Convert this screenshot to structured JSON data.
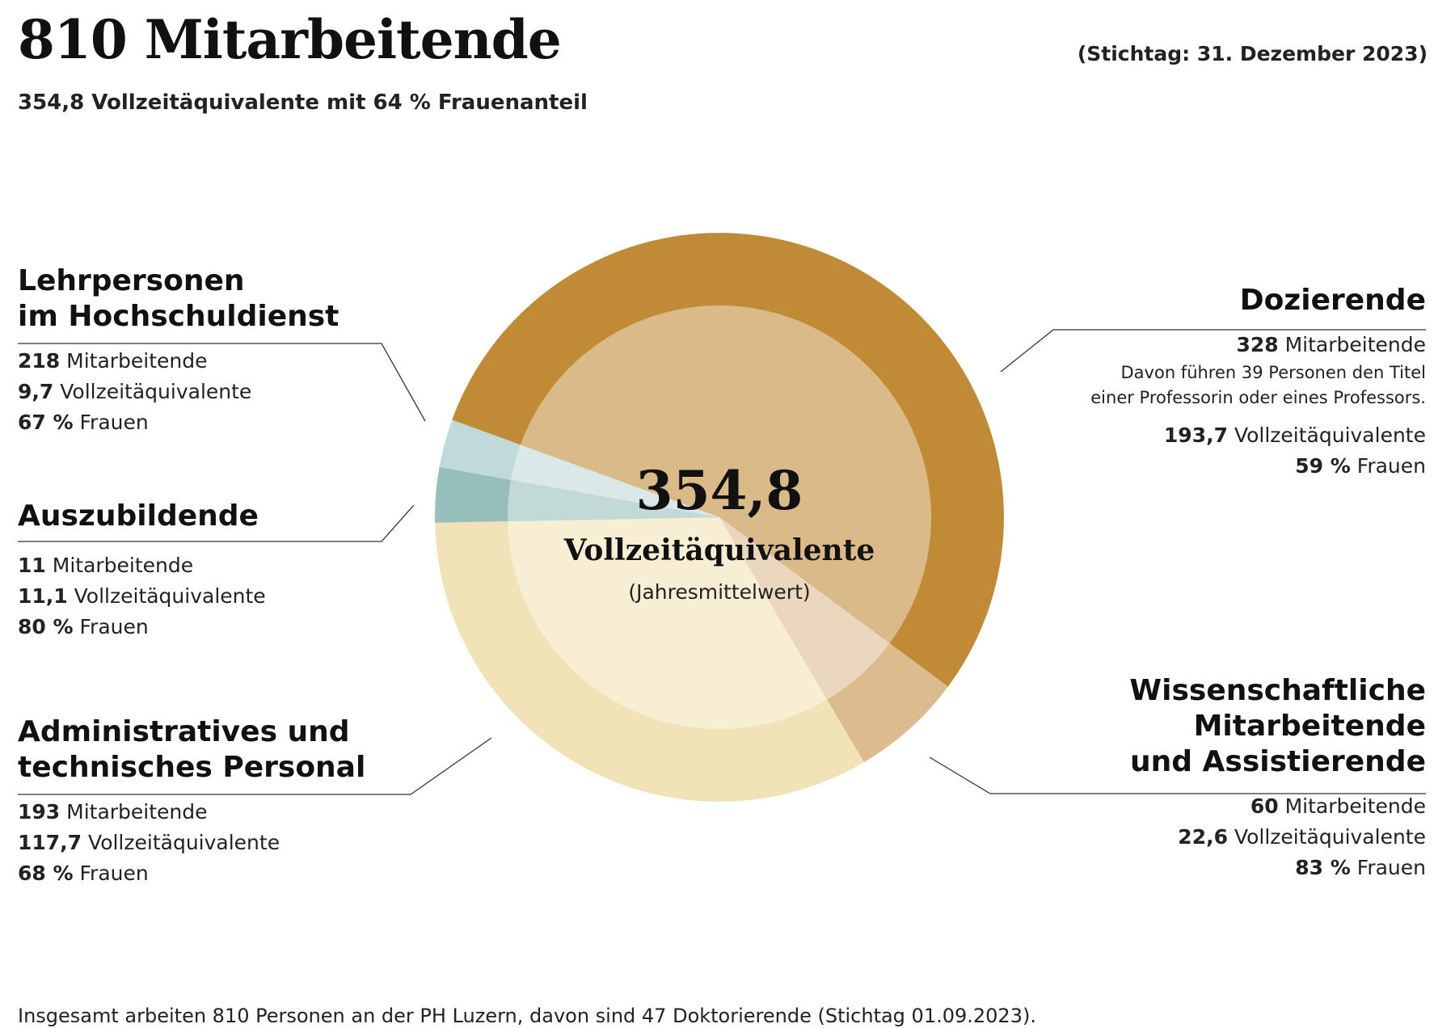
{
  "header": {
    "title": "810 Mitarbeitende",
    "subtitle": "354,8 Vollzeitäquivalente mit 64 % Frauenanteil",
    "stichtag": "(Stichtag: 31. Dezember 2023)"
  },
  "center": {
    "value": "354,8",
    "label": "Vollzeitäquivalente",
    "sub": "(Jahresmittelwert)"
  },
  "colors": {
    "dozierende": "#C18A36",
    "wissenschaftliche": "#DCBC8F",
    "administrative": "#F2E2B7",
    "auszubildende": "#96BFBB",
    "lehrpersonen": "#C0DAD9",
    "leader_line": "#333333"
  },
  "groups": {
    "lehrpersonen": {
      "title_line1": "Lehrpersonen",
      "title_line2": "im Hochschuldienst",
      "mitarbeitende_value": "218",
      "mitarbeitende_label": "Mitarbeitende",
      "vza_value": "9,7",
      "vza_label": "Vollzeitäquivalente",
      "frauen_value": "67 %",
      "frauen_label": "Frauen"
    },
    "auszubildende": {
      "title": "Auszubildende",
      "mitarbeitende_value": "11",
      "mitarbeitende_label": "Mitarbeitende",
      "vza_value": "11,1",
      "vza_label": "Vollzeitäquivalente",
      "frauen_value": "80 %",
      "frauen_label": "Frauen"
    },
    "administrative": {
      "title_line1": "Administratives und",
      "title_line2": "technisches Personal",
      "mitarbeitende_value": "193",
      "mitarbeitende_label": "Mitarbeitende",
      "vza_value": "117,7",
      "vza_label": "Vollzeitäquivalente",
      "frauen_value": "68 %",
      "frauen_label": "Frauen"
    },
    "dozierende": {
      "title": "Dozierende",
      "mitarbeitende_value": "328",
      "mitarbeitende_label": "Mitarbeitende",
      "note_line1": "Davon führen 39 Personen den Titel",
      "note_line2": "einer Professorin oder eines Professors.",
      "vza_value": "193,7",
      "vza_label": "Vollzeitäquivalente",
      "frauen_value": "59 %",
      "frauen_label": "Frauen"
    },
    "wissenschaftliche": {
      "title_line1": "Wissenschaftliche",
      "title_line2": "Mitarbeitende",
      "title_line3": "und Assistierende",
      "mitarbeitende_value": "60",
      "mitarbeitende_label": "Mitarbeitende",
      "vza_value": "22,6",
      "vza_label": "Vollzeitäquivalente",
      "frauen_value": "83 %",
      "frauen_label": "Frauen"
    }
  },
  "footer": "Insgesamt arbeiten 810 Personen an der PH Luzern, davon sind 47 Doktorierende (Stichtag 01.09.2023).",
  "chart_data": {
    "type": "pie",
    "variant": "donut",
    "title": "354,8 Vollzeitäquivalente",
    "categories": [
      "Dozierende",
      "Wissenschaftliche Mitarbeitende und Assistierende",
      "Administratives und technisches Personal",
      "Auszubildende",
      "Lehrpersonen im Hochschuldienst"
    ],
    "values": [
      193.7,
      22.6,
      117.7,
      11.1,
      9.7
    ],
    "mitarbeitende": [
      328,
      60,
      193,
      11,
      218
    ],
    "frauenanteil_percent": [
      59,
      83,
      68,
      80,
      67
    ],
    "total_vza": 354.8,
    "total_mitarbeitende": 810,
    "frauenanteil_total_percent": 64
  }
}
